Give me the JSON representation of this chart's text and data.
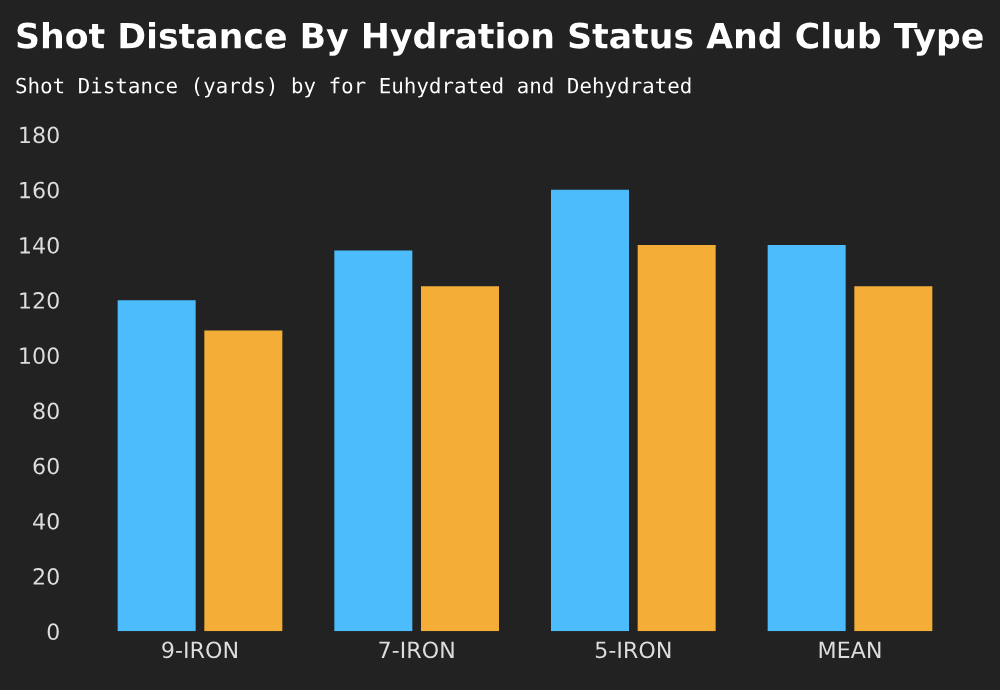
{
  "chart_data": {
    "type": "bar",
    "title": "Shot Distance By Hydration Status And Club Type",
    "subtitle": "Shot Distance (yards) by for Euhydrated and Dehydrated",
    "categories": [
      "9-IRON",
      "7-IRON",
      "5-IRON",
      "MEAN"
    ],
    "series": [
      {
        "color": "#4cbcfc",
        "values": [
          120,
          138,
          160,
          140
        ]
      },
      {
        "color": "#f4ae38",
        "values": [
          109,
          125,
          140,
          125
        ]
      }
    ],
    "ylim": [
      0,
      180
    ],
    "yticks": [
      0,
      20,
      40,
      60,
      80,
      100,
      120,
      140,
      160,
      180
    ],
    "grid": false
  }
}
